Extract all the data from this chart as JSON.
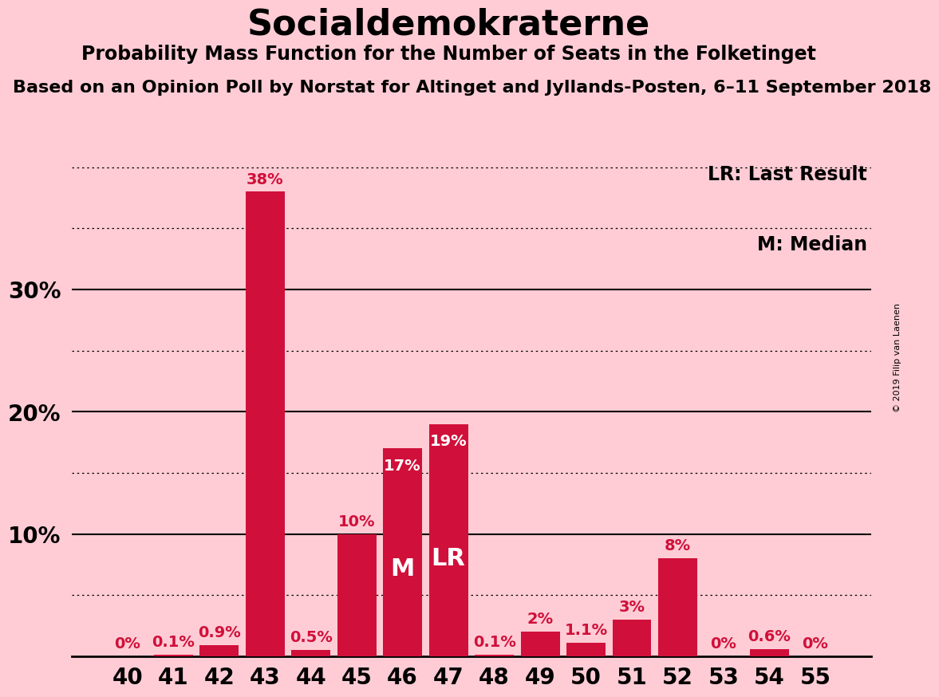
{
  "title": "Socialdemokraterne",
  "subtitle": "Probability Mass Function for the Number of Seats in the Folketinget",
  "subtitle2": "Based on an Opinion Poll by Norstat for Altinget and Jyllands-Posten, 6–11 September 2018",
  "copyright": "© 2019 Filip van Laenen",
  "categories": [
    40,
    41,
    42,
    43,
    44,
    45,
    46,
    47,
    48,
    49,
    50,
    51,
    52,
    53,
    54,
    55
  ],
  "values": [
    0.0,
    0.1,
    0.9,
    38.0,
    0.5,
    10.0,
    17.0,
    19.0,
    0.1,
    2.0,
    1.1,
    3.0,
    8.0,
    0.0,
    0.6,
    0.0
  ],
  "labels": [
    "0%",
    "0.1%",
    "0.9%",
    "38%",
    "0.5%",
    "10%",
    "17%",
    "19%",
    "0.1%",
    "2%",
    "1.1%",
    "3%",
    "8%",
    "0%",
    "0.6%",
    "0%"
  ],
  "bar_color": "#D0103A",
  "background_color": "#FFCCD5",
  "median_bar_idx": 6,
  "lr_bar_idx": 7,
  "median_label": "M",
  "lr_label": "LR",
  "legend_lr": "LR: Last Result",
  "legend_m": "M: Median",
  "ylim_max": 41.0,
  "solid_yticks": [
    10,
    20,
    30
  ],
  "dotted_yticks": [
    5,
    15,
    25,
    35,
    40
  ],
  "title_fontsize": 32,
  "subtitle_fontsize": 17,
  "subtitle2_fontsize": 16,
  "tick_fontsize": 20,
  "label_fontsize": 14,
  "legend_fontsize": 17,
  "bar_label_color_dark": "#D0103A",
  "bar_label_color_light": "#FFFFFF",
  "marker_fontsize": 22
}
